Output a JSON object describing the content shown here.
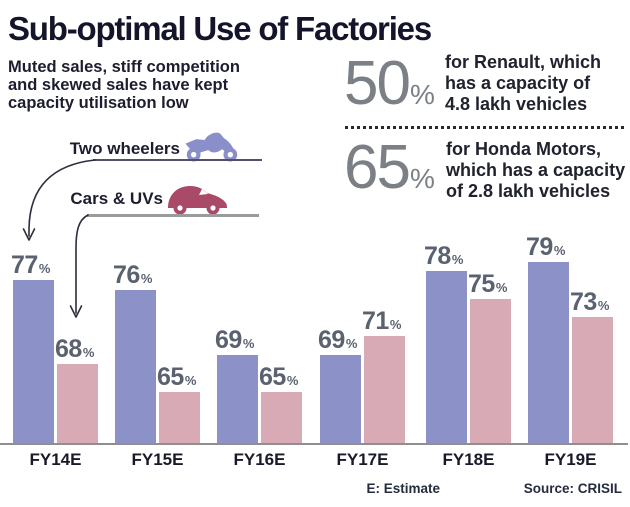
{
  "header": {
    "title": "Sub-optimal Use of Factories",
    "subtitle_lines": [
      "Muted sales, stiff competition",
      "and skewed sales have kept",
      "capacity utilisation low"
    ]
  },
  "stats": [
    {
      "value": "50",
      "unit": "%",
      "desc_lines": [
        "for Renault, which",
        "has a capacity of",
        "4.8 lakh vehicles"
      ]
    },
    {
      "value": "65",
      "unit": "%",
      "desc_lines": [
        "for Honda Motors,",
        "which has a capacity",
        "of 2.8 lakh vehicles"
      ]
    }
  ],
  "legend": {
    "items": [
      {
        "label": "Two wheelers",
        "icon": "motorcycle-icon",
        "icon_color": "#8a8fc9"
      },
      {
        "label": "Cars & UVs",
        "icon": "car-icon",
        "icon_color": "#a84a68"
      }
    ]
  },
  "chart_data": {
    "type": "bar",
    "categories": [
      "FY14E",
      "FY15E",
      "FY16E",
      "FY17E",
      "FY18E",
      "FY19E"
    ],
    "series": [
      {
        "name": "Two wheelers",
        "color": "#8c92c8",
        "values": [
          77,
          76,
          69,
          69,
          78,
          79
        ]
      },
      {
        "name": "Cars & UVs",
        "color": "#d7aab5",
        "values": [
          68,
          65,
          65,
          71,
          75,
          73
        ]
      }
    ],
    "unit": "%",
    "value_labels": true,
    "ylim": [
      59.5,
      80
    ],
    "grid": false,
    "legend_position": "upper-left"
  },
  "footnotes": {
    "estimate": "E: Estimate",
    "source": "Source: CRISIL"
  },
  "colors": {
    "bar_two_wheelers": "#8c92c8",
    "bar_cars_uvs": "#d7aab5",
    "motorcycle_icon": "#8a8fc9",
    "car_icon": "#a84a68",
    "big_number_gray": "#7b8086",
    "value_label_gray": "#5a6270",
    "heading_dark": "#16172b",
    "axis_line": "#8f8f8f"
  }
}
